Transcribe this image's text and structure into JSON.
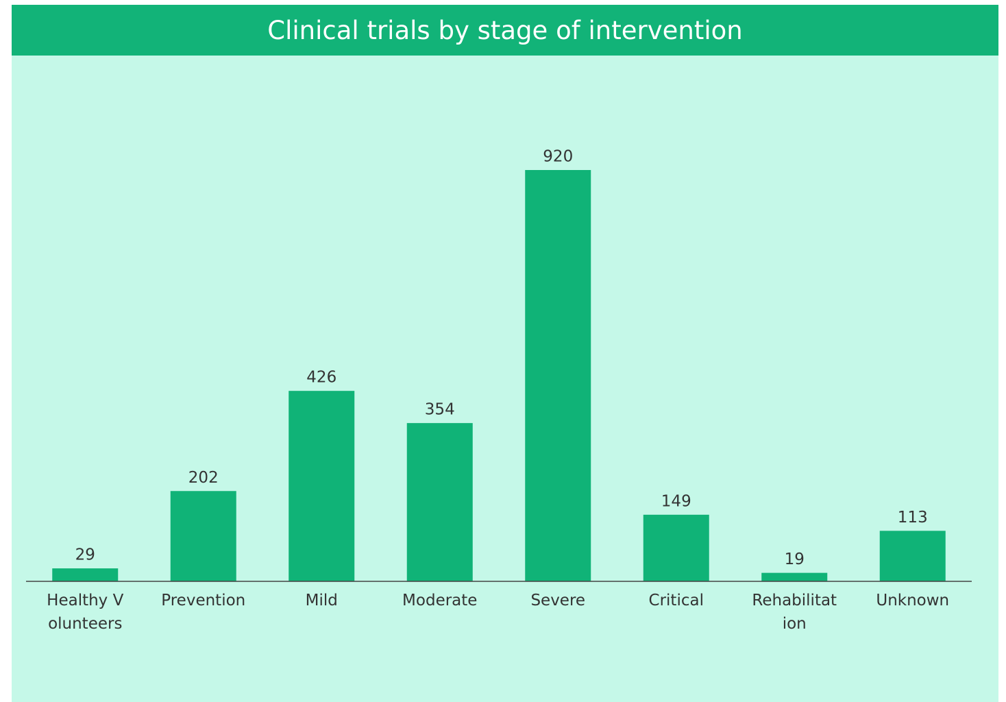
{
  "chart_data": {
    "type": "bar",
    "title": "Clinical trials by stage of intervention",
    "categories": [
      "Healthy Volunteers",
      "Prevention",
      "Mild",
      "Moderate",
      "Severe",
      "Critical",
      "Rehabilitation",
      "Unknown"
    ],
    "values": [
      29,
      202,
      426,
      354,
      920,
      149,
      19,
      113
    ],
    "color": "#10b377"
  }
}
